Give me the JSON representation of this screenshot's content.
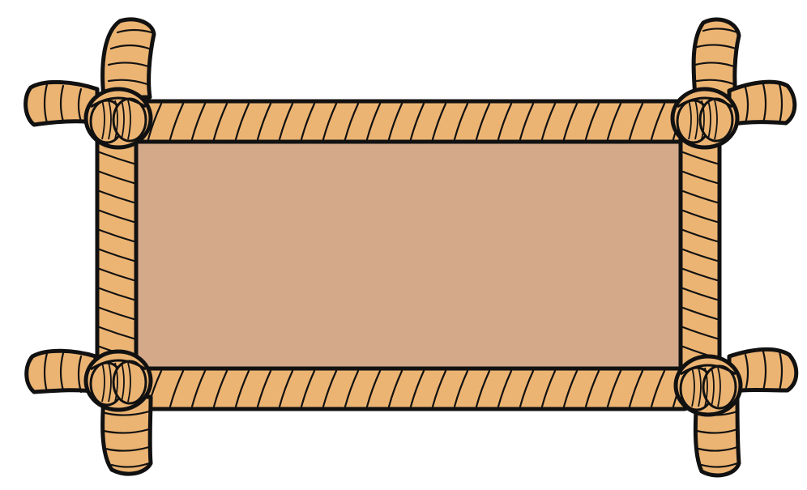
{
  "colors": {
    "background": "#ffffff",
    "panel_fill": "#d4a98a",
    "rope_fill": "#ecb473",
    "outline": "#111111"
  },
  "frame": {
    "style": "rope-border-frame",
    "corner_knots": 4,
    "panel_content": ""
  }
}
